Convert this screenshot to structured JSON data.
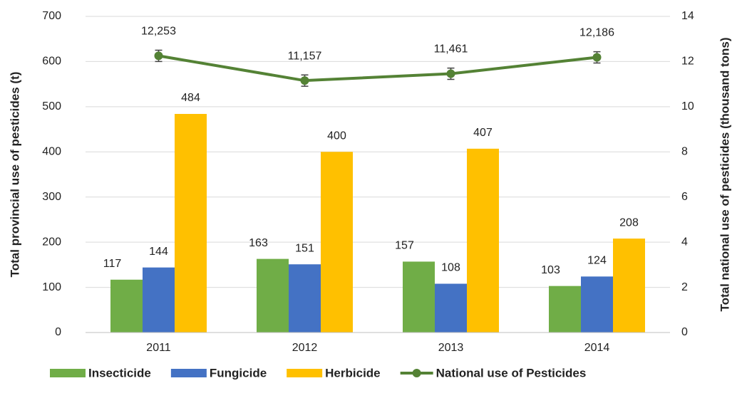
{
  "chart_data": {
    "type": "bar",
    "categories": [
      "2011",
      "2012",
      "2013",
      "2014"
    ],
    "series": [
      {
        "name": "Insecticide",
        "color": "#70ad47",
        "values": [
          117,
          163,
          157,
          103
        ]
      },
      {
        "name": "Fungicide",
        "color": "#4472c4",
        "values": [
          144,
          151,
          108,
          124
        ]
      },
      {
        "name": "Herbicide",
        "color": "#ffc000",
        "values": [
          484,
          400,
          407,
          208
        ]
      },
      {
        "name": "National use of Pesticides",
        "color": "#548235",
        "type": "line",
        "axis": "y2",
        "values": [
          12.253,
          11.157,
          11.461,
          12.186
        ],
        "value_labels": [
          "12,253",
          "11,157",
          "11,461",
          "12,186"
        ],
        "errors": [
          0.25,
          0.25,
          0.25,
          0.25
        ]
      }
    ],
    "ylabel": "Total provincial use of pesticides (t)",
    "y2label": "Total national use of pesticides (thousand tons)",
    "ylim": [
      0,
      700
    ],
    "yticks": [
      0,
      100,
      200,
      300,
      400,
      500,
      600,
      700
    ],
    "y2lim": [
      0,
      14
    ],
    "y2ticks": [
      0,
      2,
      4,
      6,
      8,
      10,
      12,
      14
    ],
    "grid": true,
    "legend": "bottom"
  }
}
